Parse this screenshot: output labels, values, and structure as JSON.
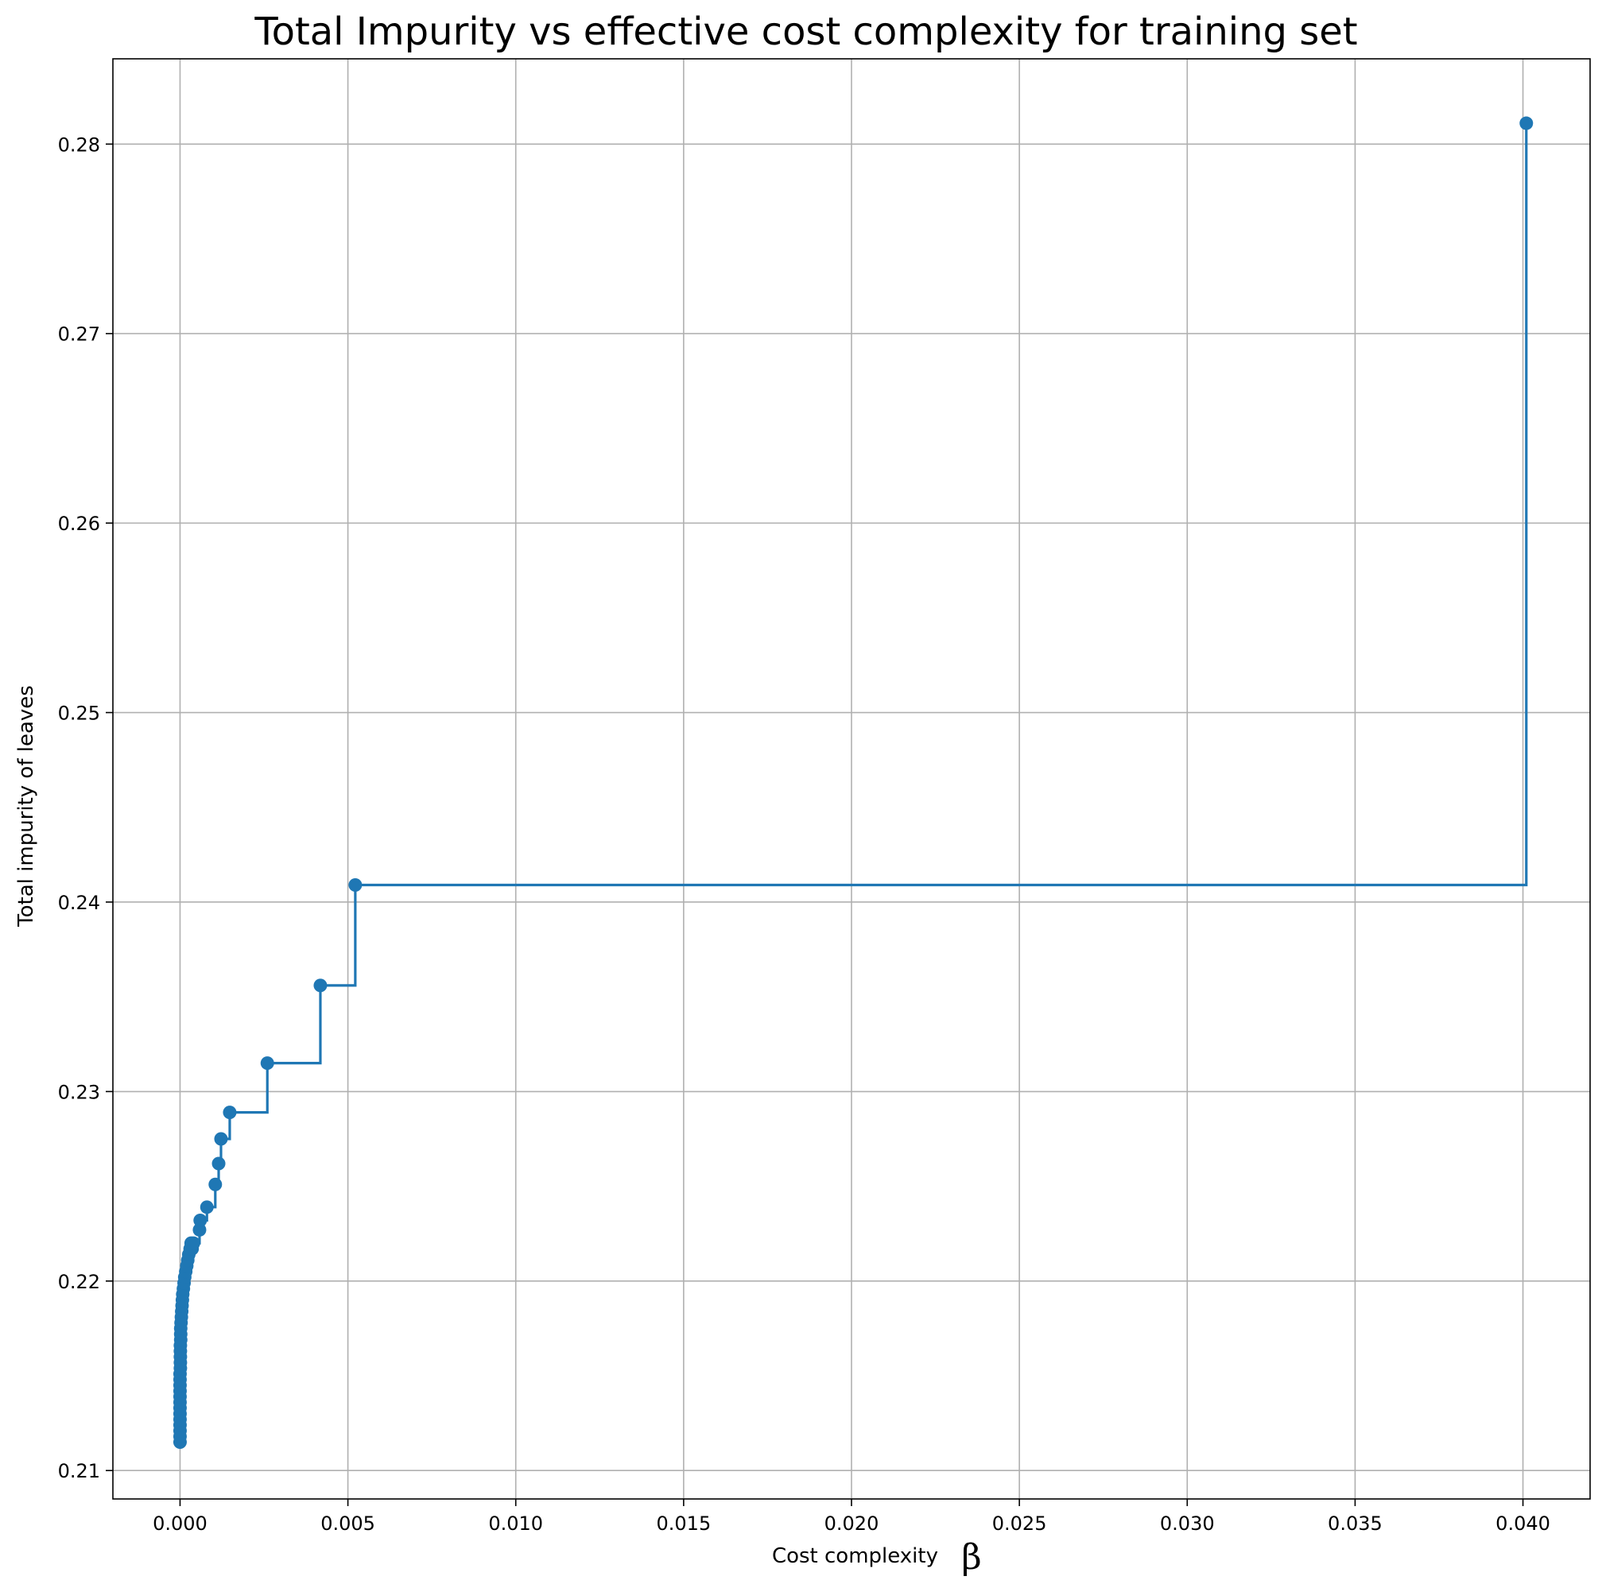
{
  "chart_data": {
    "type": "line",
    "title": "Total Impurity vs effective cost complexity for training set",
    "xlabel": "Cost complexity",
    "xlabel_symbol": "β",
    "ylabel": "Total impurity of leaves",
    "xlim": [
      -0.002,
      0.042
    ],
    "ylim": [
      0.2085,
      0.2845
    ],
    "xticks": [
      0.0,
      0.005,
      0.01,
      0.015,
      0.02,
      0.025,
      0.03,
      0.035,
      0.04
    ],
    "xtick_labels": [
      "0.000",
      "0.005",
      "0.010",
      "0.015",
      "0.020",
      "0.025",
      "0.030",
      "0.035",
      "0.040"
    ],
    "yticks": [
      0.21,
      0.22,
      0.23,
      0.24,
      0.25,
      0.26,
      0.27,
      0.28
    ],
    "ytick_labels": [
      "0.21",
      "0.22",
      "0.23",
      "0.24",
      "0.25",
      "0.26",
      "0.27",
      "0.28"
    ],
    "grid": true,
    "line_color": "#1f77b4",
    "drawstyle": "steps-post",
    "marker": "circle",
    "series": [
      {
        "x": [
          0.0,
          0.0,
          0.0,
          0.0,
          0.0,
          0.0,
          0.0,
          0.0,
          0.0,
          0.0,
          0.0,
          0.0,
          0.0,
          1e-05,
          1e-05,
          1e-05,
          1e-05,
          1e-05,
          2e-05,
          2e-05,
          2e-05,
          3e-05,
          4e-05,
          5e-05,
          6e-05,
          7e-05,
          8e-05,
          0.0001,
          0.00012,
          0.00014,
          0.00017,
          0.0002,
          0.00023,
          0.00026,
          0.0003,
          0.00033,
          0.00036,
          0.0004,
          0.00058,
          0.0006,
          0.0008,
          0.00105,
          0.00115,
          0.00122,
          0.00148,
          0.0026,
          0.00418,
          0.00522,
          0.0401
        ],
        "y": [
          0.2115,
          0.2118,
          0.2121,
          0.2124,
          0.2127,
          0.213,
          0.2133,
          0.2136,
          0.2139,
          0.2142,
          0.2145,
          0.2148,
          0.2151,
          0.2154,
          0.2157,
          0.216,
          0.2163,
          0.2166,
          0.2169,
          0.2172,
          0.2175,
          0.2178,
          0.2181,
          0.2184,
          0.2187,
          0.219,
          0.2193,
          0.2196,
          0.2199,
          0.2202,
          0.2205,
          0.2208,
          0.2211,
          0.2214,
          0.2217,
          0.222,
          0.2217,
          0.222,
          0.2227,
          0.2232,
          0.2239,
          0.2251,
          0.2262,
          0.2275,
          0.2289,
          0.2315,
          0.2356,
          0.2409,
          0.2811
        ]
      }
    ]
  }
}
